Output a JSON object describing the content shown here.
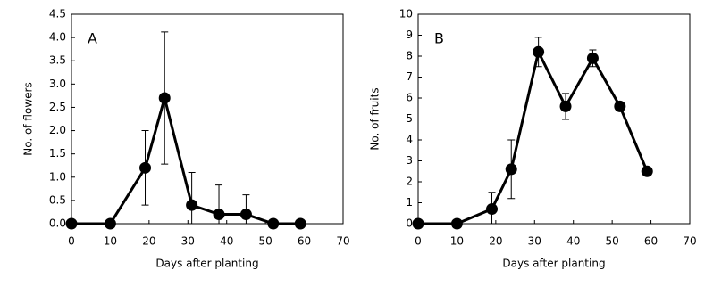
{
  "chart_data": [
    {
      "type": "line",
      "panel_label": "A",
      "ylabel": "No. of flowers",
      "xlabel": "Days after planting",
      "x": [
        0,
        10,
        19,
        24,
        31,
        38,
        45,
        52,
        59
      ],
      "values": [
        0,
        0,
        1.2,
        2.7,
        0.4,
        0.2,
        0.2,
        0,
        0
      ],
      "errors": [
        0,
        0,
        0.8,
        1.42,
        0.7,
        0.63,
        0.42,
        0,
        0
      ],
      "color": "#000000",
      "xlim": [
        0,
        70
      ],
      "xticks": [
        0,
        10,
        20,
        30,
        40,
        50,
        60,
        70
      ],
      "ylim": [
        0,
        4.5
      ],
      "yticks": [
        {
          "value": 0,
          "label": "0.0"
        },
        {
          "value": 0.5,
          "label": "0.5"
        },
        {
          "value": 1,
          "label": "1.0"
        },
        {
          "value": 1.5,
          "label": "1.5"
        },
        {
          "value": 2,
          "label": "2.0"
        },
        {
          "value": 2.5,
          "label": "2.5"
        },
        {
          "value": 3,
          "label": "3.0"
        },
        {
          "value": 3.5,
          "label": "3.5"
        },
        {
          "value": 4,
          "label": "4.0"
        },
        {
          "value": 4.5,
          "label": "4.5"
        }
      ]
    },
    {
      "type": "line",
      "panel_label": "B",
      "ylabel": "No. of fruits",
      "xlabel": "Days after planting",
      "x": [
        0,
        10,
        19,
        24,
        31,
        38,
        45,
        52,
        59
      ],
      "values": [
        0,
        0,
        0.7,
        2.6,
        8.2,
        5.6,
        7.9,
        5.6,
        2.5
      ],
      "errors": [
        0,
        0,
        0.8,
        1.4,
        0.7,
        0.62,
        0.4,
        0,
        0
      ],
      "color": "#000000",
      "xlim": [
        0,
        70
      ],
      "xticks": [
        0,
        10,
        20,
        30,
        40,
        50,
        60,
        70
      ],
      "ylim": [
        0,
        10
      ],
      "yticks": [
        0,
        1,
        2,
        3,
        4,
        5,
        6,
        7,
        8,
        9,
        10
      ]
    }
  ]
}
